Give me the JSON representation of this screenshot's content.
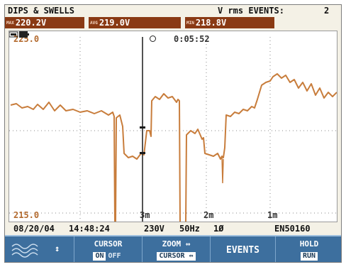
{
  "header": {
    "title": "DIPS & SWELLS",
    "events_label": "V rms EVENTS:",
    "events_count": "2"
  },
  "readings": [
    {
      "tag": "MAX",
      "value": "220.2V"
    },
    {
      "tag": "AVG",
      "value": "219.0V"
    },
    {
      "tag": "MIN",
      "value": "218.8V"
    }
  ],
  "plot": {
    "y_top_label": "225.0",
    "y_bottom_label": "215.0",
    "timer": "0:05:52",
    "time_markers": [
      "3m",
      "2m",
      "1m"
    ]
  },
  "info": {
    "date": "08/20/04",
    "time": "14:48:24",
    "voltage": "230V",
    "freq": "50Hz",
    "phase": "1Ø",
    "standard": "EN50160"
  },
  "softkeys": [
    {
      "icon": "wave-icon",
      "arrow": "↕"
    },
    {
      "line1": "CURSOR",
      "on": "ON",
      "off": "OFF"
    },
    {
      "line1": "ZOOM ⇔",
      "line2": "CURSOR ⇔"
    },
    {
      "label": "EVENTS"
    },
    {
      "line1": "HOLD",
      "line2": "RUN"
    }
  ],
  "colors": {
    "trace": "#c87d3c",
    "reading_bg": "#8a3a14",
    "softkey_bg": "#3d6f9e"
  }
}
